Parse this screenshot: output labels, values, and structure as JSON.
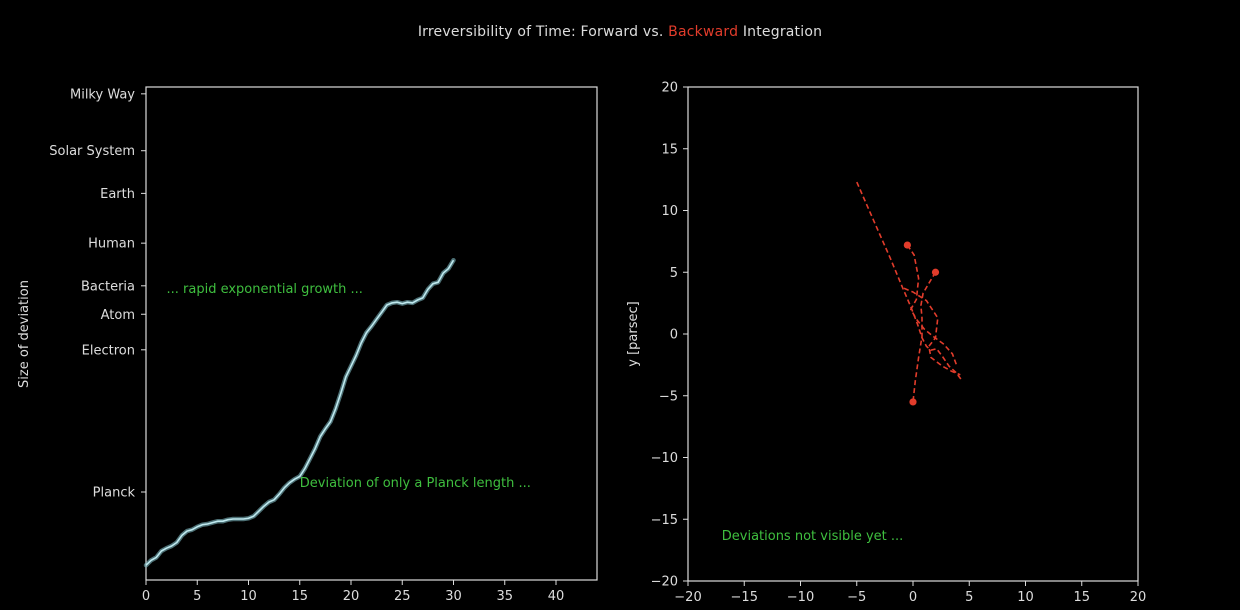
{
  "title": {
    "part1": "Irreversibility of Time: Forward vs. ",
    "part2": "Backward",
    "part3": " Integration"
  },
  "colors": {
    "background": "#000000",
    "axes": "#dddddd",
    "forward_curve": "#bfe9ef",
    "backward_trajectory": "#e23c2b",
    "annotation": "#3fbf3f"
  },
  "chart_data": [
    {
      "type": "line",
      "ylabel": "Size of deviation",
      "xlabel": "",
      "xlim": [
        0,
        44
      ],
      "x_ticks": [
        0,
        5,
        10,
        15,
        20,
        25,
        30,
        35,
        40
      ],
      "y_scale": "log",
      "y_ticks": [
        {
          "label": "Planck",
          "value": 1e-35
        },
        {
          "label": "Electron",
          "value": 1e-15
        },
        {
          "label": "Atom",
          "value": 1e-10
        },
        {
          "label": "Bacteria",
          "value": 1e-06
        },
        {
          "label": "Human",
          "value": 1
        },
        {
          "label": "Earth",
          "value": 10000000.0
        },
        {
          "label": "Solar System",
          "value": 10000000000000.0
        },
        {
          "label": "Milky Way",
          "value": 1e+21
        }
      ],
      "series": [
        {
          "x": [
            0,
            0.5,
            1,
            1.5,
            2,
            2.5,
            3,
            3.5,
            4,
            4.5,
            5,
            5.5,
            6,
            6.5,
            7,
            7.5,
            8,
            8.5,
            9,
            9.5,
            10,
            10.5,
            11,
            11.5,
            12,
            12.5,
            13,
            13.5,
            14,
            14.5,
            15,
            15.5,
            16,
            16.5,
            17,
            17.5,
            18,
            18.5,
            19,
            19.5,
            20,
            20.5,
            21,
            21.5,
            22,
            22.5,
            23,
            23.5,
            24,
            24.5,
            25,
            25.5,
            26,
            26.5,
            27,
            27.5,
            28,
            28.5,
            29,
            29.5,
            30
          ],
          "y_log10": [
            -45.3,
            -44.6,
            -44.2,
            -43.3,
            -42.9,
            -42.6,
            -42.1,
            -41.1,
            -40.5,
            -40.3,
            -39.9,
            -39.6,
            -39.5,
            -39.3,
            -39.1,
            -39.1,
            -38.9,
            -38.8,
            -38.8,
            -38.8,
            -38.7,
            -38.4,
            -37.7,
            -37.0,
            -36.4,
            -36.1,
            -35.3,
            -34.4,
            -33.7,
            -33.2,
            -32.8,
            -31.7,
            -30.3,
            -28.9,
            -27.2,
            -26.1,
            -25.1,
            -23.3,
            -21.1,
            -18.8,
            -17.3,
            -15.8,
            -14.0,
            -12.6,
            -11.7,
            -10.7,
            -9.7,
            -8.7,
            -8.4,
            -8.3,
            -8.5,
            -8.3,
            -8.4,
            -8.0,
            -7.7,
            -6.5,
            -5.7,
            -5.5,
            -4.2,
            -3.6,
            -2.4
          ]
        }
      ],
      "annotations": [
        {
          "text": "... rapid exponential growth ...",
          "x": 2,
          "y_log10": -7
        },
        {
          "text": "Deviation of only a Planck length ...",
          "x": 15,
          "y_log10": -34.3
        }
      ]
    },
    {
      "type": "line",
      "xlabel": "",
      "ylabel": "y [parsec]",
      "xlim": [
        -20,
        20
      ],
      "ylim": [
        -20,
        20
      ],
      "x_ticks": [
        -20,
        -15,
        -10,
        -5,
        0,
        5,
        10,
        15,
        20
      ],
      "y_ticks": [
        -20,
        -15,
        -10,
        -5,
        0,
        5,
        10,
        15,
        20
      ],
      "series": [
        {
          "x": [
            -5,
            -3.5,
            -2,
            -1,
            -0.2,
            0.4,
            0.8,
            1.2,
            1.6,
            2.1,
            2.6,
            3.2,
            3.8,
            4.3
          ],
          "y": [
            12.3,
            9.2,
            6.1,
            3.9,
            2.2,
            0.8,
            -0.3,
            -1.0,
            -1.3,
            -1.2,
            -1.8,
            -2.6,
            -3.1,
            -3.7
          ]
        },
        {
          "x": [
            -0.5,
            0.1,
            0.5,
            0.3,
            -0.2,
            0.3,
            1.0,
            1.8,
            2.7,
            3.5,
            3.9
          ],
          "y": [
            7.2,
            6.4,
            4.5,
            2.8,
            2.0,
            1.2,
            0.4,
            -0.2,
            -0.8,
            -1.6,
            -2.6
          ]
        },
        {
          "x": [
            2,
            1.4,
            0.9,
            0.7,
            0.8,
            0.8,
            0.5,
            0.2,
            0.0
          ],
          "y": [
            5.0,
            4.1,
            3.3,
            2.3,
            1.3,
            -0.2,
            -1.9,
            -3.8,
            -5.5
          ]
        },
        {
          "x": [
            -0.8,
            0.0,
            1.2,
            2.2,
            2.0,
            1.4,
            1.6,
            2.6,
            3.4,
            4.2
          ],
          "y": [
            3.7,
            3.4,
            2.7,
            1.3,
            -0.3,
            -1.0,
            -1.9,
            -2.6,
            -3.0,
            -3.3
          ]
        }
      ],
      "markers": [
        {
          "x": -0.5,
          "y": 7.2
        },
        {
          "x": 2,
          "y": 5
        },
        {
          "x": 0,
          "y": -5.5
        }
      ],
      "annotations": [
        {
          "text": "Deviations not visible yet ...",
          "x": -17,
          "y": -16.7
        }
      ]
    }
  ]
}
